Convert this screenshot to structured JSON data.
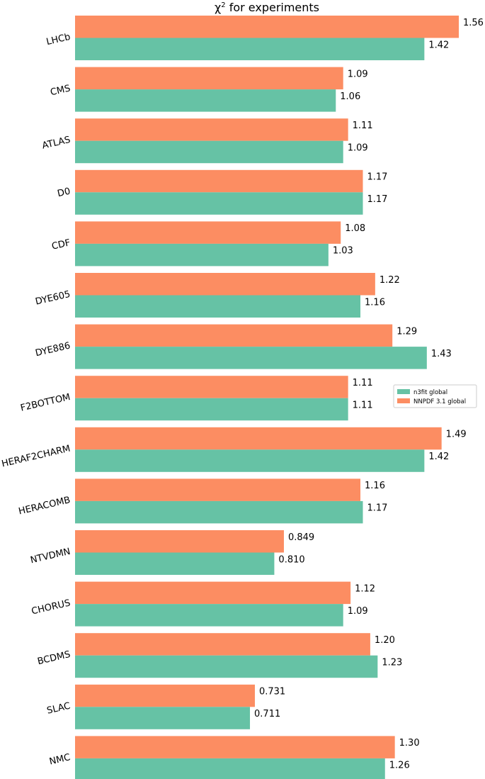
{
  "chart_data": {
    "type": "bar",
    "orientation": "horizontal",
    "title": "χ",
    "title_sup": "2",
    "title_rest": " for experiments",
    "xlabel": "",
    "ylabel": "",
    "xlim": [
      0,
      1.56
    ],
    "categories": [
      "LHCb",
      "CMS",
      "ATLAS",
      "D0",
      "CDF",
      "DYE605",
      "DYE886",
      "F2BOTTOM",
      "HERAF2CHARM",
      "HERACOMB",
      "NTVDMN",
      "CHORUS",
      "BCDMS",
      "SLAC",
      "NMC"
    ],
    "series": [
      {
        "name": "NNPDF 3.1 global",
        "color": "#fc8d62",
        "values": [
          1.56,
          1.09,
          1.11,
          1.17,
          1.08,
          1.22,
          1.29,
          1.11,
          1.49,
          1.16,
          0.849,
          1.12,
          1.2,
          0.731,
          1.3
        ],
        "labels": [
          "1.56",
          "1.09",
          "1.11",
          "1.17",
          "1.08",
          "1.22",
          "1.29",
          "1.11",
          "1.49",
          "1.16",
          "0.849",
          "1.12",
          "1.20",
          "0.731",
          "1.30"
        ]
      },
      {
        "name": "n3fit global",
        "color": "#66c2a5",
        "values": [
          1.42,
          1.06,
          1.09,
          1.17,
          1.03,
          1.16,
          1.43,
          1.11,
          1.42,
          1.17,
          0.81,
          1.09,
          1.23,
          0.711,
          1.26
        ],
        "labels": [
          "1.42",
          "1.06",
          "1.09",
          "1.17",
          "1.03",
          "1.16",
          "1.43",
          "1.11",
          "1.42",
          "1.17",
          "0.810",
          "1.09",
          "1.23",
          "0.711",
          "1.26"
        ]
      }
    ],
    "legend": {
      "position": "center-right",
      "entries": [
        "n3fit global",
        "NNPDF 3.1 global"
      ]
    },
    "grid": false
  }
}
